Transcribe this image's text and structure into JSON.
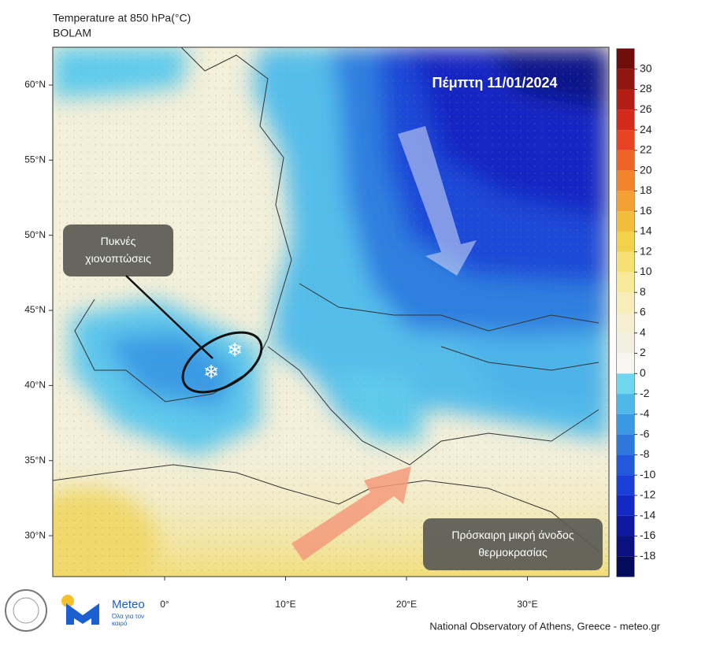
{
  "title": "Temperature at 850 hPa(°C)",
  "subtitle": "BOLAM",
  "date_label": "Πέμπτη 11/01/2024",
  "annotations": [
    "Πυκνές χιονοπτώσεις",
    "Πρόσκαιρη μικρή άνοδος θερμοκρασίας"
  ],
  "lat_ticks": [
    {
      "value": 60,
      "label": "60°N"
    },
    {
      "value": 55,
      "label": "55°N"
    },
    {
      "value": 50,
      "label": "50°N"
    },
    {
      "value": 45,
      "label": "45°N"
    },
    {
      "value": 40,
      "label": "40°N"
    },
    {
      "value": 35,
      "label": "35°N"
    },
    {
      "value": 30,
      "label": "30°N"
    }
  ],
  "lon_ticks": [
    {
      "value": 0,
      "label": "0°"
    },
    {
      "value": 10,
      "label": "10°E"
    },
    {
      "value": 20,
      "label": "20°E"
    },
    {
      "value": 30,
      "label": "30°E"
    }
  ],
  "colorbar": {
    "lim": [
      -20,
      32
    ],
    "ticks": [
      30,
      28,
      26,
      24,
      22,
      20,
      18,
      16,
      14,
      12,
      10,
      8,
      6,
      4,
      2,
      0,
      -2,
      -4,
      -6,
      -8,
      -10,
      -12,
      -14,
      -16,
      -18
    ],
    "colors": [
      "#6e0d0a",
      "#8e1510",
      "#b31d14",
      "#d42a1c",
      "#e84424",
      "#ee6428",
      "#f2842c",
      "#f4a033",
      "#f2bc3c",
      "#f2d24a",
      "#f5e172",
      "#f6e999",
      "#f6edb8",
      "#f5efcf",
      "#f3f0e2",
      "#f7f6f1",
      "#6fd6f0",
      "#4fb8ea",
      "#3a98e4",
      "#2c78df",
      "#2158dc",
      "#1a3ed8",
      "#1428c4",
      "#0e18a0",
      "#0a1080",
      "#060a5c"
    ]
  },
  "logo": {
    "name": "Meteo",
    "tagline": "Όλα για τον καιρό"
  },
  "footer": "National Observatory of Athens, Greece - meteo.gr"
}
